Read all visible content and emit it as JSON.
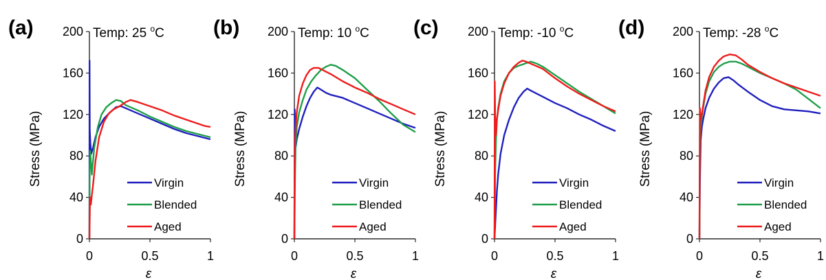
{
  "chart_data": [
    {
      "type": "line",
      "panel_label": "(a)",
      "title_prefix": "Temp: 25 ",
      "title_sup": "o",
      "title_suffix": "C",
      "xlabel": "ε",
      "ylabel": "Stress (MPa)",
      "xlim": [
        0,
        1
      ],
      "ylim": [
        0,
        200
      ],
      "xticks": [
        "0",
        "0.5",
        "1"
      ],
      "yticks": [
        "0",
        "40",
        "80",
        "120",
        "160",
        "200"
      ],
      "legend_position": "bottom-right",
      "series": [
        {
          "name": "Virgin",
          "color": "#1f1fbf",
          "x": [
            0,
            0.001,
            0.003,
            0.008,
            0.015,
            0.03,
            0.05,
            0.08,
            0.12,
            0.17,
            0.22,
            0.26,
            0.3,
            0.4,
            0.5,
            0.6,
            0.7,
            0.8,
            0.9,
            1.0
          ],
          "y": [
            0,
            172,
            105,
            92,
            82,
            88,
            98,
            108,
            116,
            122,
            127,
            128,
            126,
            121,
            116,
            111,
            106,
            102,
            99,
            96
          ]
        },
        {
          "name": "Blended",
          "color": "#1f9e4a",
          "x": [
            0,
            0.002,
            0.006,
            0.012,
            0.02,
            0.04,
            0.07,
            0.1,
            0.14,
            0.18,
            0.22,
            0.26,
            0.3,
            0.4,
            0.5,
            0.6,
            0.7,
            0.8,
            0.9,
            1.0
          ],
          "y": [
            0,
            70,
            85,
            75,
            62,
            88,
            108,
            120,
            127,
            131,
            134,
            133,
            129,
            124,
            118,
            113,
            108,
            104,
            101,
            98
          ]
        },
        {
          "name": "Aged",
          "color": "#ee1c1c",
          "x": [
            0,
            0.005,
            0.012,
            0.02,
            0.03,
            0.05,
            0.08,
            0.12,
            0.16,
            0.2,
            0.25,
            0.3,
            0.34,
            0.4,
            0.5,
            0.6,
            0.7,
            0.8,
            0.9,
            0.95,
            1.0
          ],
          "y": [
            0,
            40,
            33,
            42,
            52,
            75,
            98,
            113,
            121,
            125,
            128,
            132,
            134,
            132,
            128,
            124,
            119,
            115,
            111,
            109,
            108
          ]
        }
      ]
    },
    {
      "type": "line",
      "panel_label": "(b)",
      "title_prefix": "Temp: 10 ",
      "title_sup": "o",
      "title_suffix": "C",
      "xlabel": "ε",
      "ylabel": "Stress (MPa)",
      "xlim": [
        0,
        1
      ],
      "ylim": [
        0,
        200
      ],
      "xticks": [
        "0",
        "0.5",
        "1"
      ],
      "yticks": [
        "0",
        "40",
        "80",
        "120",
        "160",
        "200"
      ],
      "legend_position": "bottom-right",
      "series": [
        {
          "name": "Virgin",
          "color": "#1f1fbf",
          "x": [
            0,
            0.003,
            0.01,
            0.02,
            0.04,
            0.07,
            0.1,
            0.13,
            0.16,
            0.19,
            0.22,
            0.26,
            0.3,
            0.4,
            0.5,
            0.6,
            0.7,
            0.8,
            0.9,
            1.0
          ],
          "y": [
            0,
            125,
            88,
            96,
            106,
            118,
            128,
            136,
            142,
            146,
            144,
            141,
            139,
            136,
            131,
            126,
            121,
            116,
            111,
            107
          ]
        },
        {
          "name": "Blended",
          "color": "#1f9e4a",
          "x": [
            0,
            0.005,
            0.01,
            0.02,
            0.04,
            0.07,
            0.1,
            0.14,
            0.18,
            0.22,
            0.26,
            0.3,
            0.34,
            0.4,
            0.5,
            0.6,
            0.7,
            0.8,
            0.9,
            1.0
          ],
          "y": [
            0,
            55,
            90,
            108,
            122,
            134,
            144,
            152,
            158,
            163,
            166,
            168,
            167,
            163,
            155,
            144,
            133,
            121,
            110,
            103
          ]
        },
        {
          "name": "Aged",
          "color": "#ee1c1c",
          "x": [
            0,
            0.002,
            0.006,
            0.012,
            0.02,
            0.04,
            0.07,
            0.1,
            0.13,
            0.16,
            0.2,
            0.25,
            0.3,
            0.4,
            0.5,
            0.6,
            0.7,
            0.8,
            0.9,
            1.0
          ],
          "y": [
            0,
            78,
            98,
            110,
            122,
            138,
            150,
            158,
            163,
            165,
            165,
            162,
            159,
            152,
            146,
            141,
            135,
            130,
            125,
            120
          ]
        }
      ]
    },
    {
      "type": "line",
      "panel_label": "(c)",
      "title_prefix": "Temp: -10 ",
      "title_sup": "o",
      "title_suffix": "C",
      "xlabel": "ε",
      "ylabel": "Stress (MPa)",
      "xlim": [
        0,
        1
      ],
      "ylim": [
        0,
        200
      ],
      "xticks": [
        "0",
        "0.5",
        "1"
      ],
      "yticks": [
        "0",
        "40",
        "80",
        "120",
        "160",
        "200"
      ],
      "legend_position": "bottom-right",
      "series": [
        {
          "name": "Virgin",
          "color": "#1f1fbf",
          "x": [
            0,
            0.005,
            0.012,
            0.02,
            0.03,
            0.05,
            0.08,
            0.12,
            0.16,
            0.2,
            0.24,
            0.27,
            0.3,
            0.4,
            0.5,
            0.6,
            0.7,
            0.8,
            0.9,
            1.0
          ],
          "y": [
            0,
            12,
            28,
            46,
            62,
            82,
            100,
            115,
            127,
            136,
            142,
            145,
            143,
            137,
            131,
            126,
            120,
            115,
            109,
            104
          ]
        },
        {
          "name": "Blended",
          "color": "#1f9e4a",
          "x": [
            0,
            0.005,
            0.012,
            0.02,
            0.03,
            0.05,
            0.08,
            0.12,
            0.16,
            0.2,
            0.25,
            0.3,
            0.35,
            0.4,
            0.5,
            0.6,
            0.7,
            0.8,
            0.9,
            1.0
          ],
          "y": [
            0,
            62,
            95,
            114,
            126,
            140,
            152,
            160,
            165,
            167,
            169,
            171,
            169,
            166,
            158,
            150,
            142,
            135,
            128,
            121
          ]
        },
        {
          "name": "Aged",
          "color": "#ee1c1c",
          "x": [
            0,
            0.002,
            0.006,
            0.012,
            0.02,
            0.03,
            0.05,
            0.08,
            0.12,
            0.16,
            0.2,
            0.23,
            0.26,
            0.3,
            0.4,
            0.5,
            0.6,
            0.7,
            0.8,
            0.9,
            1.0
          ],
          "y": [
            0,
            152,
            108,
            100,
            116,
            124,
            138,
            150,
            160,
            166,
            170,
            172,
            171,
            169,
            164,
            155,
            147,
            140,
            134,
            128,
            123
          ]
        }
      ]
    },
    {
      "type": "line",
      "panel_label": "(d)",
      "title_prefix": "Temp: -28 ",
      "title_sup": "o",
      "title_suffix": "C",
      "xlabel": "ε",
      "ylabel": "Stress (MPa)",
      "xlim": [
        0,
        1
      ],
      "ylim": [
        0,
        200
      ],
      "xticks": [
        "0",
        "0.5",
        "1"
      ],
      "yticks": [
        "0",
        "40",
        "80",
        "120",
        "160",
        "200"
      ],
      "legend_position": "bottom-right",
      "series": [
        {
          "name": "Virgin",
          "color": "#1f1fbf",
          "x": [
            0,
            0.004,
            0.01,
            0.02,
            0.03,
            0.05,
            0.08,
            0.12,
            0.16,
            0.2,
            0.24,
            0.28,
            0.32,
            0.4,
            0.5,
            0.6,
            0.7,
            0.8,
            0.9,
            1.0
          ],
          "y": [
            0,
            55,
            95,
            108,
            115,
            126,
            136,
            145,
            151,
            155,
            156,
            153,
            149,
            142,
            134,
            128,
            125,
            124,
            123,
            121
          ]
        },
        {
          "name": "Blended",
          "color": "#1f9e4a",
          "x": [
            0,
            0.004,
            0.01,
            0.02,
            0.03,
            0.05,
            0.08,
            0.12,
            0.16,
            0.2,
            0.25,
            0.3,
            0.35,
            0.4,
            0.5,
            0.6,
            0.7,
            0.8,
            0.9,
            1.0
          ],
          "y": [
            0,
            90,
            108,
            118,
            126,
            140,
            152,
            161,
            166,
            169,
            171,
            171,
            169,
            166,
            160,
            155,
            150,
            144,
            135,
            126
          ]
        },
        {
          "name": "Aged",
          "color": "#ee1c1c",
          "x": [
            0,
            0.004,
            0.01,
            0.02,
            0.03,
            0.05,
            0.08,
            0.12,
            0.16,
            0.2,
            0.25,
            0.3,
            0.35,
            0.4,
            0.5,
            0.6,
            0.7,
            0.8,
            0.9,
            1.0
          ],
          "y": [
            0,
            126,
            115,
            120,
            128,
            143,
            156,
            166,
            172,
            176,
            178,
            177,
            173,
            168,
            161,
            155,
            150,
            146,
            142,
            138
          ]
        }
      ]
    }
  ]
}
